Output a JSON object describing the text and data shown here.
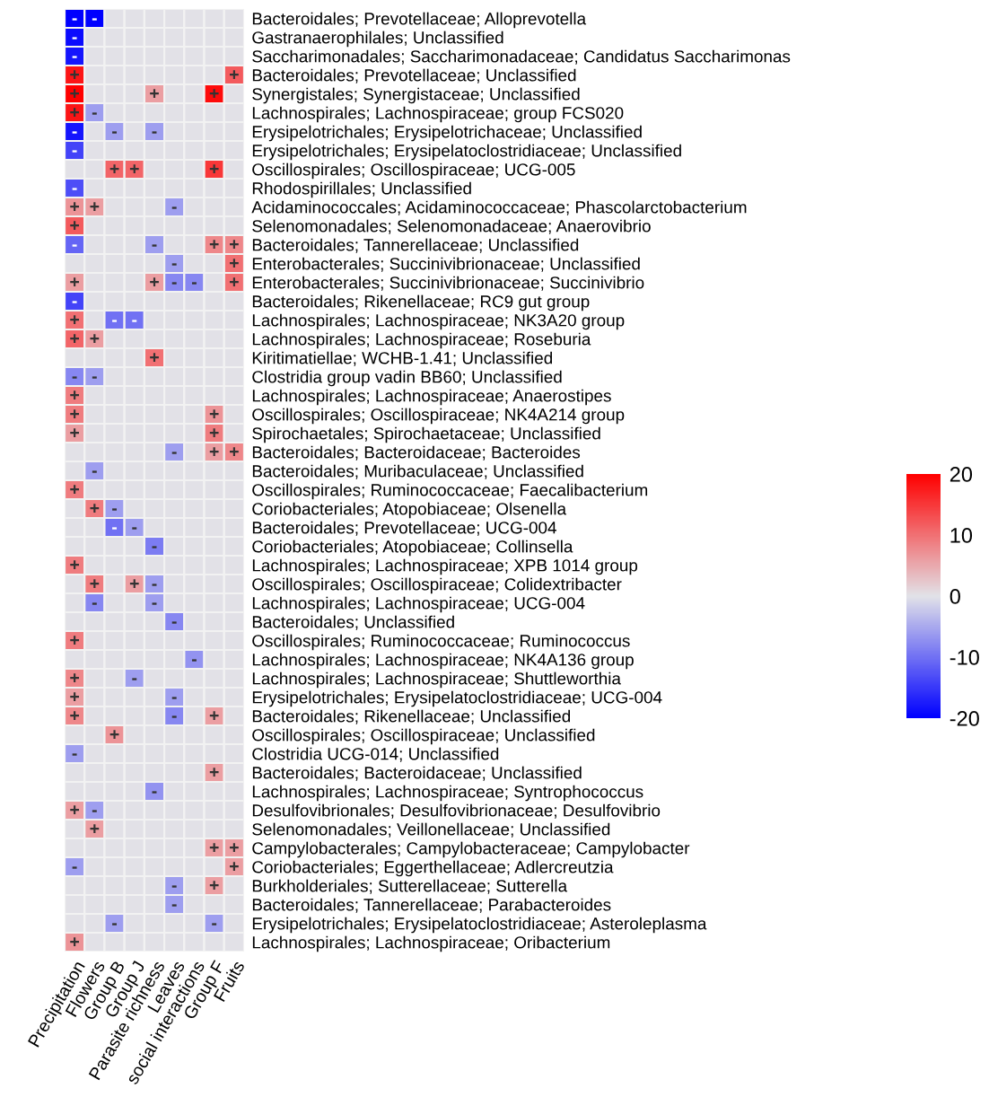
{
  "chart_data": {
    "type": "heatmap",
    "categories": [
      "Precipitation",
      "Flowers",
      "Group B",
      "Group J",
      "Parasite richness",
      "Leaves",
      "social interactions",
      "Group F",
      "Fruits"
    ],
    "y_categories": [
      "Bacteroidales; Prevotellaceae; Alloprevotella",
      "Gastranaerophilales; Unclassified",
      "Saccharimonadales; Saccharimonadaceae; Candidatus Saccharimonas",
      "Bacteroidales; Prevotellaceae; Unclassified",
      "Synergistales; Synergistaceae; Unclassified",
      "Lachnospirales; Lachnospiraceae; group FCS020",
      "Erysipelotrichales; Erysipelotrichaceae; Unclassified",
      "Erysipelotrichales; Erysipelatoclostridiaceae; Unclassified",
      "Oscillospirales; Oscillospiraceae; UCG-005",
      "Rhodospirillales; Unclassified",
      "Acidaminococcales; Acidaminococcaceae; Phascolarctobacterium",
      "Selenomonadales; Selenomonadaceae; Anaerovibrio",
      "Bacteroidales; Tannerellaceae; Unclassified",
      "Enterobacterales; Succinivibrionaceae; Unclassified",
      "Enterobacterales; Succinivibrionaceae; Succinivibrio",
      "Bacteroidales; Rikenellaceae; RC9 gut group",
      "Lachnospirales; Lachnospiraceae; NK3A20 group",
      "Lachnospirales; Lachnospiraceae; Roseburia",
      "Kiritimatiellae; WCHB-1.41; Unclassified",
      "Clostridia group vadin BB60; Unclassified",
      "Lachnospirales; Lachnospiraceae; Anaerostipes",
      "Oscillospirales; Oscillospiraceae; NK4A214 group",
      "Spirochaetales; Spirochaetaceae; Unclassified",
      "Bacteroidales; Bacteroidaceae; Bacteroides",
      "Bacteroidales; Muribaculaceae; Unclassified",
      "Oscillospirales; Ruminococcaceae; Faecalibacterium",
      "Coriobacteriales; Atopobiaceae; Olsenella",
      "Bacteroidales; Prevotellaceae; UCG-004",
      "Coriobacteriales; Atopobiaceae; Collinsella",
      "Lachnospirales; Lachnospiraceae; XPB 1014 group",
      "Oscillospirales; Oscillospiraceae; Colidextribacter",
      "Lachnospirales; Lachnospiraceae; UCG-004",
      "Bacteroidales; Unclassified",
      "Oscillospirales; Ruminococcaceae; Ruminococcus",
      "Lachnospirales; Lachnospiraceae; NK4A136 group",
      "Lachnospirales; Lachnospiraceae; Shuttleworthia",
      "Erysipelotrichales; Erysipelatoclostridiaceae; UCG-004",
      "Bacteroidales; Rikenellaceae; Unclassified",
      "Oscillospirales; Oscillospiraceae; Unclassified",
      "Clostridia UCG-014; Unclassified",
      "Bacteroidales; Bacteroidaceae; Unclassified",
      "Lachnospirales; Lachnospiraceae; Syntrophococcus",
      "Desulfovibrionales; Desulfovibrionaceae; Desulfovibrio",
      "Selenomonadales; Veillonellaceae; Unclassified",
      "Campylobacterales; Campylobacteraceae; Campylobacter",
      "Coriobacteriales; Eggerthellaceae; Adlercreutzia",
      "Burkholderiales; Sutterellaceae; Sutterella",
      "Bacteroidales; Tannerellaceae; Parabacteroides",
      "Erysipelotrichales; Erysipelatoclostridiaceae; Asteroleplasma",
      "Lachnospirales; Lachnospiraceae; Oribacterium"
    ],
    "cells": [
      [
        -20,
        -20,
        0,
        0,
        0,
        0,
        0,
        0,
        0
      ],
      [
        -19,
        0,
        0,
        0,
        0,
        0,
        0,
        0,
        0
      ],
      [
        -18,
        0,
        0,
        0,
        0,
        0,
        0,
        0,
        0
      ],
      [
        18,
        0,
        0,
        0,
        0,
        0,
        0,
        0,
        12
      ],
      [
        20,
        0,
        0,
        0,
        6,
        0,
        0,
        19,
        0
      ],
      [
        18,
        -6,
        0,
        0,
        0,
        0,
        0,
        0,
        0
      ],
      [
        -18,
        0,
        -6,
        0,
        -6,
        0,
        0,
        0,
        0
      ],
      [
        -14,
        0,
        0,
        0,
        0,
        0,
        0,
        0,
        0
      ],
      [
        0,
        0,
        11,
        11,
        0,
        0,
        0,
        15,
        0
      ],
      [
        -13,
        0,
        0,
        0,
        0,
        0,
        0,
        0,
        0
      ],
      [
        7,
        6,
        0,
        0,
        0,
        -6,
        0,
        0,
        0
      ],
      [
        12,
        0,
        0,
        0,
        0,
        0,
        0,
        0,
        0
      ],
      [
        -11,
        0,
        0,
        0,
        -6,
        0,
        0,
        8,
        8
      ],
      [
        0,
        0,
        0,
        0,
        0,
        -6,
        0,
        0,
        10
      ],
      [
        6,
        0,
        0,
        0,
        6,
        -8,
        -8,
        0,
        10
      ],
      [
        -14,
        0,
        0,
        0,
        0,
        0,
        0,
        0,
        0
      ],
      [
        10,
        0,
        -10,
        -10,
        0,
        0,
        0,
        0,
        0
      ],
      [
        11,
        6,
        0,
        0,
        0,
        0,
        0,
        0,
        0
      ],
      [
        0,
        0,
        0,
        0,
        10,
        0,
        0,
        0,
        0
      ],
      [
        -8,
        -6,
        0,
        0,
        0,
        0,
        0,
        0,
        0
      ],
      [
        9,
        0,
        0,
        0,
        0,
        0,
        0,
        0,
        0
      ],
      [
        9,
        0,
        0,
        0,
        0,
        0,
        0,
        7,
        0
      ],
      [
        6,
        0,
        0,
        0,
        0,
        0,
        0,
        9,
        0
      ],
      [
        0,
        0,
        0,
        0,
        0,
        -6,
        0,
        6,
        8
      ],
      [
        0,
        -6,
        0,
        0,
        0,
        0,
        0,
        0,
        0
      ],
      [
        9,
        0,
        0,
        0,
        0,
        0,
        0,
        0,
        0
      ],
      [
        0,
        9,
        -6,
        0,
        0,
        0,
        0,
        0,
        0
      ],
      [
        0,
        0,
        -10,
        -6,
        0,
        0,
        0,
        0,
        0
      ],
      [
        0,
        0,
        0,
        0,
        -9,
        0,
        0,
        0,
        0
      ],
      [
        9,
        0,
        0,
        0,
        0,
        0,
        0,
        0,
        0
      ],
      [
        0,
        9,
        0,
        6,
        -6,
        0,
        0,
        0,
        0
      ],
      [
        0,
        -8,
        0,
        0,
        -6,
        0,
        0,
        0,
        0
      ],
      [
        0,
        0,
        0,
        0,
        0,
        -8,
        0,
        0,
        0
      ],
      [
        9,
        0,
        0,
        0,
        0,
        0,
        0,
        0,
        0
      ],
      [
        0,
        0,
        0,
        0,
        0,
        0,
        -7,
        0,
        0
      ],
      [
        8,
        0,
        0,
        -6,
        0,
        0,
        0,
        0,
        0
      ],
      [
        6,
        0,
        0,
        0,
        0,
        -6,
        0,
        0,
        0
      ],
      [
        8,
        0,
        0,
        0,
        0,
        -8,
        0,
        6,
        0
      ],
      [
        0,
        0,
        7,
        0,
        0,
        0,
        0,
        0,
        0
      ],
      [
        -6,
        0,
        0,
        0,
        0,
        0,
        0,
        0,
        0
      ],
      [
        0,
        0,
        0,
        0,
        0,
        0,
        0,
        6,
        0
      ],
      [
        0,
        0,
        0,
        0,
        -7,
        0,
        0,
        0,
        0
      ],
      [
        6,
        -6,
        0,
        0,
        0,
        0,
        0,
        0,
        0
      ],
      [
        0,
        6,
        0,
        0,
        0,
        0,
        0,
        0,
        0
      ],
      [
        0,
        0,
        0,
        0,
        0,
        0,
        0,
        6,
        6
      ],
      [
        -6,
        0,
        0,
        0,
        0,
        0,
        0,
        0,
        6
      ],
      [
        0,
        0,
        0,
        0,
        0,
        -6,
        0,
        6,
        0
      ],
      [
        0,
        0,
        0,
        0,
        0,
        -6,
        0,
        0,
        0
      ],
      [
        0,
        0,
        -6,
        0,
        0,
        0,
        0,
        -6,
        0
      ],
      [
        7,
        0,
        0,
        0,
        0,
        0,
        0,
        0,
        0
      ]
    ],
    "cell_labels": [
      [
        "-",
        "-",
        null,
        null,
        null,
        null,
        null,
        null,
        null
      ],
      [
        "-",
        null,
        null,
        null,
        null,
        null,
        null,
        null,
        null
      ],
      [
        "-",
        null,
        null,
        null,
        null,
        null,
        null,
        null,
        null
      ],
      [
        "+",
        null,
        null,
        null,
        null,
        null,
        null,
        null,
        "+"
      ],
      [
        "+",
        null,
        null,
        null,
        "+",
        null,
        null,
        "+",
        null
      ],
      [
        "+",
        "-",
        null,
        null,
        null,
        null,
        null,
        null,
        null
      ],
      [
        "-",
        null,
        "-",
        null,
        "-",
        null,
        null,
        null,
        null
      ],
      [
        "-",
        null,
        null,
        null,
        null,
        null,
        null,
        null,
        null
      ],
      [
        null,
        null,
        "+",
        "+",
        null,
        null,
        null,
        "+",
        null
      ],
      [
        "-",
        null,
        null,
        null,
        null,
        null,
        null,
        null,
        null
      ],
      [
        "+",
        "+",
        null,
        null,
        null,
        "-",
        null,
        null,
        null
      ],
      [
        "+",
        null,
        null,
        null,
        null,
        null,
        null,
        null,
        null
      ],
      [
        "-",
        null,
        null,
        null,
        "-",
        null,
        null,
        "+",
        "+"
      ],
      [
        null,
        null,
        null,
        null,
        null,
        "-",
        null,
        null,
        "+"
      ],
      [
        "+",
        null,
        null,
        null,
        "+",
        "-",
        "-",
        null,
        "+"
      ],
      [
        "-",
        null,
        null,
        null,
        null,
        null,
        null,
        null,
        null
      ],
      [
        "+",
        null,
        "-",
        "-",
        null,
        null,
        null,
        null,
        null
      ],
      [
        "+",
        "+",
        null,
        null,
        null,
        null,
        null,
        null,
        null
      ],
      [
        null,
        null,
        null,
        null,
        "+",
        null,
        null,
        null,
        null
      ],
      [
        "-",
        "-",
        null,
        null,
        null,
        null,
        null,
        null,
        null
      ],
      [
        "+",
        null,
        null,
        null,
        null,
        null,
        null,
        null,
        null
      ],
      [
        "+",
        null,
        null,
        null,
        null,
        null,
        null,
        "+",
        null
      ],
      [
        "+",
        null,
        null,
        null,
        null,
        null,
        null,
        "+",
        null
      ],
      [
        null,
        null,
        null,
        null,
        null,
        "-",
        null,
        "+",
        "+"
      ],
      [
        null,
        "-",
        null,
        null,
        null,
        null,
        null,
        null,
        null
      ],
      [
        "+",
        null,
        null,
        null,
        null,
        null,
        null,
        null,
        null
      ],
      [
        null,
        "+",
        "-",
        null,
        null,
        null,
        null,
        null,
        null
      ],
      [
        null,
        null,
        "-",
        "-",
        null,
        null,
        null,
        null,
        null
      ],
      [
        null,
        null,
        null,
        null,
        "-",
        null,
        null,
        null,
        null
      ],
      [
        "+",
        null,
        null,
        null,
        null,
        null,
        null,
        null,
        null
      ],
      [
        null,
        "+",
        null,
        "+",
        "-",
        null,
        null,
        null,
        null
      ],
      [
        null,
        "-",
        null,
        null,
        "-",
        null,
        null,
        null,
        null
      ],
      [
        null,
        null,
        null,
        null,
        null,
        "-",
        null,
        null,
        null
      ],
      [
        "+",
        null,
        null,
        null,
        null,
        null,
        null,
        null,
        null
      ],
      [
        null,
        null,
        null,
        null,
        null,
        null,
        "-",
        null,
        null
      ],
      [
        "+",
        null,
        null,
        "-",
        null,
        null,
        null,
        null,
        null
      ],
      [
        "+",
        null,
        null,
        null,
        null,
        "-",
        null,
        null,
        null
      ],
      [
        "+",
        null,
        null,
        null,
        null,
        "-",
        null,
        "+",
        null
      ],
      [
        null,
        null,
        "+",
        null,
        null,
        null,
        null,
        null,
        null
      ],
      [
        "-",
        null,
        null,
        null,
        null,
        null,
        null,
        null,
        null
      ],
      [
        null,
        null,
        null,
        null,
        null,
        null,
        null,
        "+",
        null
      ],
      [
        null,
        null,
        null,
        null,
        "-",
        null,
        null,
        null,
        null
      ],
      [
        "+",
        "-",
        null,
        null,
        null,
        null,
        null,
        null,
        null
      ],
      [
        null,
        "+",
        null,
        null,
        null,
        null,
        null,
        null,
        null
      ],
      [
        null,
        null,
        null,
        null,
        null,
        null,
        null,
        "+",
        "+"
      ],
      [
        "-",
        null,
        null,
        null,
        null,
        null,
        null,
        null,
        "+"
      ],
      [
        null,
        null,
        null,
        null,
        null,
        "-",
        null,
        "+",
        null
      ],
      [
        null,
        null,
        null,
        null,
        null,
        "-",
        null,
        null,
        null
      ],
      [
        null,
        null,
        "-",
        null,
        null,
        null,
        null,
        "-",
        null
      ],
      [
        "+",
        null,
        null,
        null,
        null,
        null,
        null,
        null,
        null
      ]
    ],
    "clim": [
      -20,
      20
    ],
    "cticks": [
      -20,
      -10,
      0,
      10,
      20
    ]
  }
}
